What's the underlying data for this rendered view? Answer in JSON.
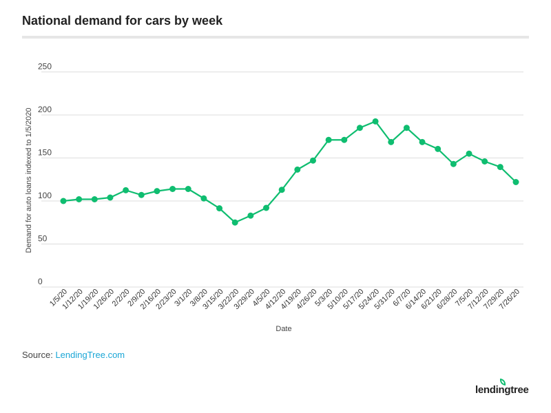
{
  "chart_data": {
    "type": "line",
    "title": "National demand for cars by week",
    "xlabel": "Date",
    "ylabel": "Demand for auto loans indexed to 1/5/2020",
    "ylim": [
      0,
      250
    ],
    "yticks": [
      0,
      50,
      100,
      150,
      200,
      250
    ],
    "grid": true,
    "color": "#0fbd70",
    "categories": [
      "1/5/20",
      "1/12/20",
      "1/19/20",
      "1/26/20",
      "2/2/20",
      "2/9/20",
      "2/16/20",
      "2/23/20",
      "3/1/20",
      "3/8/20",
      "3/15/20",
      "3/22/20",
      "3/29/20",
      "4/5/20",
      "4/12/20",
      "4/19/20",
      "4/26/20",
      "5/3/20",
      "5/10/20",
      "5/17/20",
      "5/24/20",
      "5/31/20",
      "6/7/20",
      "6/14/20",
      "6/21/20",
      "6/28/20",
      "7/5/20",
      "7/12/20",
      "7/29/20",
      "7/26/20"
    ],
    "values": [
      100,
      102,
      102,
      104,
      112.5,
      107,
      111.5,
      114,
      114,
      103,
      91.5,
      75,
      83,
      92,
      113,
      136.5,
      147,
      171,
      171,
      185,
      192.5,
      168.5,
      185,
      168.5,
      160.5,
      143,
      155,
      146,
      139.5,
      122
    ]
  },
  "source": {
    "label": "Source:",
    "link": "LendingTree.com"
  },
  "logo": "lendingtree"
}
